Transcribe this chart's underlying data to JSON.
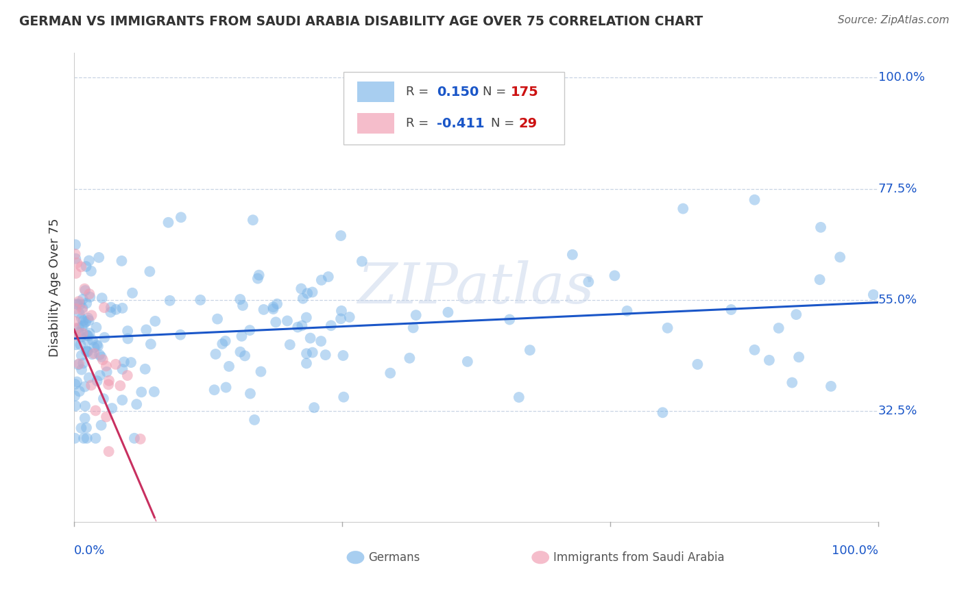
{
  "title": "GERMAN VS IMMIGRANTS FROM SAUDI ARABIA DISABILITY AGE OVER 75 CORRELATION CHART",
  "source": "Source: ZipAtlas.com",
  "ylabel": "Disability Age Over 75",
  "y_tick_labels": [
    "32.5%",
    "55.0%",
    "77.5%",
    "100.0%"
  ],
  "y_tick_values": [
    0.325,
    0.55,
    0.775,
    1.0
  ],
  "x_min": 0.0,
  "x_max": 1.0,
  "y_min": 0.1,
  "y_max": 1.05,
  "watermark": "ZIPatlas",
  "blue_color": "#7ab4e8",
  "pink_color": "#f09ab0",
  "blue_line_color": "#1a56c8",
  "pink_line_color": "#c83060",
  "background_color": "#ffffff",
  "R_german": 0.15,
  "N_german": 175,
  "R_saudi": -0.411,
  "N_saudi": 29,
  "blue_r_color": "#1a56c8",
  "blue_n_color": "#cc1111",
  "pink_r_color": "#1a56c8",
  "pink_n_color": "#cc1111",
  "legend_text_color": "#333333",
  "tick_label_color": "#1a56c8",
  "title_color": "#333333",
  "source_color": "#666666",
  "grid_color": "#c8d4e4",
  "spine_color": "#cccccc"
}
